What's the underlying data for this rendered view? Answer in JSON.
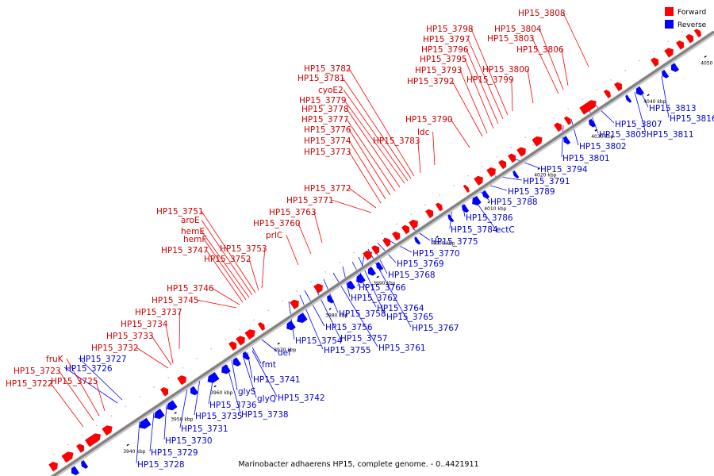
{
  "caption": "Marinobacter adhaerens HP15, complete genome. - 0..4421911",
  "legend": [
    {
      "label": "Forward",
      "color": "#ff0000"
    },
    {
      "label": "Reverse",
      "color": "#0000ff"
    }
  ],
  "colors": {
    "forward": "#ff0000",
    "reverse": "#0000ff",
    "forward_label": "#cc0000",
    "reverse_label": "#0000cc",
    "backbone": "#808080"
  },
  "ticks": [
    "3940 kbp",
    "3950 kbp",
    "3960 kbp",
    "3970 kbp",
    "3980 kbp",
    "3990 kbp",
    "4000 kbp",
    "4010 kbp",
    "4020 kbp",
    "4030 kbp",
    "4040 kbp",
    "4050 kbp"
  ],
  "forward_labels": [
    "HP15_3722",
    "HP15_3723",
    "fruK",
    "HP15_3725",
    "HP15_3732",
    "HP15_3733",
    "HP15_3734",
    "HP15_3737",
    "HP15_3745",
    "HP15_3746",
    "HP15_3747",
    "hemF",
    "hemE",
    "aroE",
    "HP15_3751",
    "HP15_3752",
    "HP15_3753",
    "prlC",
    "HP15_3760",
    "HP15_3763",
    "HP15_3771",
    "HP15_3772",
    "HP15_3773",
    "HP15_3774",
    "HP15_3776",
    "HP15_3777",
    "HP15_3778",
    "HP15_3779",
    "cyoE2",
    "HP15_3781",
    "HP15_3782",
    "HP15_3783",
    "ldc",
    "HP15_3790",
    "HP15_3792",
    "HP15_3793",
    "HP15_3795",
    "HP15_3796",
    "HP15_3797",
    "HP15_3798",
    "HP15_3799",
    "HP15_3800",
    "HP15_3803",
    "HP15_3804",
    "HP15_3806",
    "HP15_3808"
  ],
  "reverse_labels": [
    "HP15_3726",
    "HP15_3727",
    "HP15_3728",
    "HP15_3729",
    "HP15_3730",
    "HP15_3731",
    "HP15_3735",
    "HP15_3736",
    "HP15_3738",
    "glyS",
    "glyQ",
    "HP15_3742",
    "HP15_3741",
    "fmt",
    "def",
    "HP15_3754",
    "HP15_3755",
    "HP15_3756",
    "HP15_3757",
    "HP15_3758",
    "HP15_3761",
    "HP15_3762",
    "HP15_3764",
    "HP15_3765",
    "HP15_3766",
    "HP15_3767",
    "HP15_3768",
    "HP15_3769",
    "HP15_3770",
    "HP15_3775",
    "HP15_3784",
    "HP15_3786",
    "ectC",
    "HP15_3788",
    "HP15_3789",
    "HP15_3791",
    "HP15_3794",
    "HP15_3801",
    "HP15_3802",
    "HP15_3805",
    "HP15_3807",
    "HP15_3811",
    "HP15_3813",
    "HP15_3816"
  ]
}
